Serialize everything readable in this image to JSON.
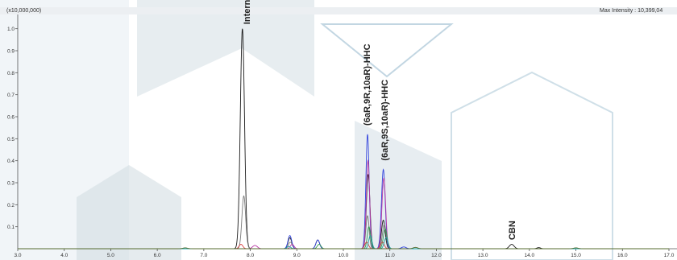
{
  "header": {
    "multiplier": "(x10,000,000)",
    "max_intensity": "Max Intensity : 10,399,04"
  },
  "chart_data": {
    "type": "line",
    "title": "",
    "xlabel": "",
    "ylabel": "",
    "xlim": [
      3.0,
      17.0
    ],
    "ylim": [
      0.0,
      1.05
    ],
    "x_ticks": [
      "3.0",
      "4.0",
      "5.0",
      "6.0",
      "7.0",
      "8.0",
      "9.0",
      "10.0",
      "11.0",
      "12.0",
      "13.0",
      "14.0",
      "15.0",
      "16.0",
      "17.0"
    ],
    "y_ticks": [
      "0.1",
      "0.2",
      "0.3",
      "0.4",
      "0.5",
      "0.6",
      "0.7",
      "0.8",
      "0.9",
      "1.0"
    ],
    "grid": false,
    "series": [
      {
        "color": "#1a1a1a",
        "peaks": [
          [
            7.83,
            1.0,
            0.045
          ],
          [
            8.85,
            0.05,
            0.04
          ],
          [
            9.45,
            0.04,
            0.04
          ],
          [
            10.52,
            0.2,
            0.035
          ],
          [
            10.55,
            0.17,
            0.035
          ],
          [
            10.86,
            0.13,
            0.04
          ],
          [
            13.62,
            0.02,
            0.05
          ],
          [
            14.2,
            0.005,
            0.04
          ]
        ]
      },
      {
        "color": "#7a7a7a",
        "peaks": [
          [
            7.86,
            0.24,
            0.04
          ],
          [
            8.86,
            0.03,
            0.04
          ],
          [
            10.52,
            0.15,
            0.035
          ],
          [
            10.88,
            0.11,
            0.04
          ]
        ]
      },
      {
        "color": "#3344dd",
        "peaks": [
          [
            10.52,
            0.52,
            0.035
          ],
          [
            10.86,
            0.36,
            0.04
          ],
          [
            8.85,
            0.06,
            0.04
          ],
          [
            9.45,
            0.04,
            0.04
          ],
          [
            11.3,
            0.008,
            0.05
          ]
        ]
      },
      {
        "color": "#b83aa3",
        "peaks": [
          [
            10.53,
            0.4,
            0.035
          ],
          [
            10.87,
            0.32,
            0.04
          ],
          [
            8.9,
            0.02,
            0.04
          ],
          [
            8.1,
            0.015,
            0.05
          ]
        ]
      },
      {
        "color": "#2f9a52",
        "peaks": [
          [
            10.55,
            0.1,
            0.035
          ],
          [
            10.9,
            0.09,
            0.04
          ],
          [
            9.48,
            0.02,
            0.04
          ]
        ]
      },
      {
        "color": "#d94040",
        "peaks": [
          [
            7.8,
            0.02,
            0.04
          ],
          [
            10.5,
            0.03,
            0.04
          ],
          [
            10.84,
            0.03,
            0.04
          ]
        ]
      },
      {
        "color": "#1aa3a3",
        "peaks": [
          [
            10.58,
            0.06,
            0.035
          ],
          [
            10.92,
            0.05,
            0.04
          ],
          [
            8.83,
            0.01,
            0.04
          ]
        ]
      },
      {
        "color": "#556b2f",
        "peaks": [
          [
            6.6,
            0.004,
            0.05
          ],
          [
            11.55,
            0.006,
            0.05
          ],
          [
            15.0,
            0.004,
            0.05
          ]
        ]
      }
    ],
    "annotations": [
      {
        "text": "Internal Standard",
        "x": 7.92,
        "y": 1.02
      },
      {
        "text": "(6aR,9R,10aR)-HHC",
        "x": 10.5,
        "y": 0.56
      },
      {
        "text": "(6aR,9S,10aR)-HHC",
        "x": 10.88,
        "y": 0.4
      },
      {
        "text": "CBN",
        "x": 13.62,
        "y": 0.04
      }
    ]
  }
}
